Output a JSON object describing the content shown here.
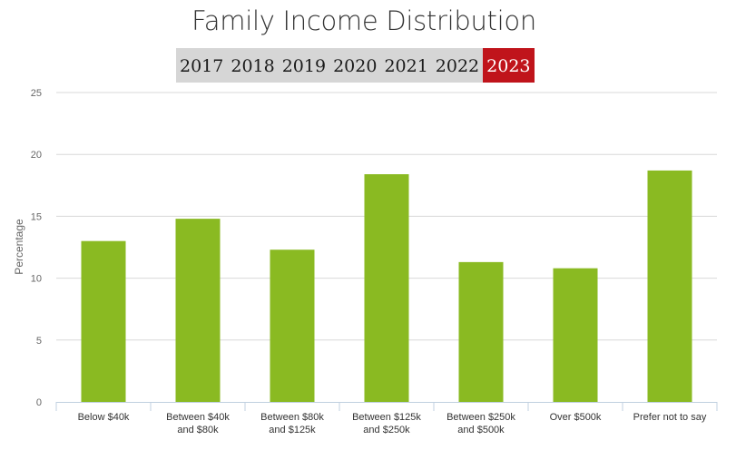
{
  "page": {
    "title": "Family Income Distribution",
    "years": [
      "2017",
      "2018",
      "2019",
      "2020",
      "2021",
      "2022",
      "2023"
    ],
    "selected_year": "2023"
  },
  "colors": {
    "bar": "#8aba22",
    "active_tab": "#c0141b",
    "tab_bar": "#d6d6d6",
    "grid": "#d8d8d8"
  },
  "chart_data": {
    "type": "bar",
    "title": "Family Income Distribution",
    "xlabel": "",
    "ylabel": "Percentage",
    "ylim": [
      0,
      25
    ],
    "yticks": [
      0,
      5,
      10,
      15,
      20,
      25
    ],
    "grid": true,
    "categories": [
      [
        "Below $40k"
      ],
      [
        "Between $40k",
        "and $80k"
      ],
      [
        "Between $80k",
        "and $125k"
      ],
      [
        "Between $125k",
        "and $250k"
      ],
      [
        "Between $250k",
        "and $500k"
      ],
      [
        "Over $500k"
      ],
      [
        "Prefer not to say"
      ]
    ],
    "values": [
      13.0,
      14.8,
      12.3,
      18.4,
      11.3,
      10.8,
      18.7
    ]
  }
}
